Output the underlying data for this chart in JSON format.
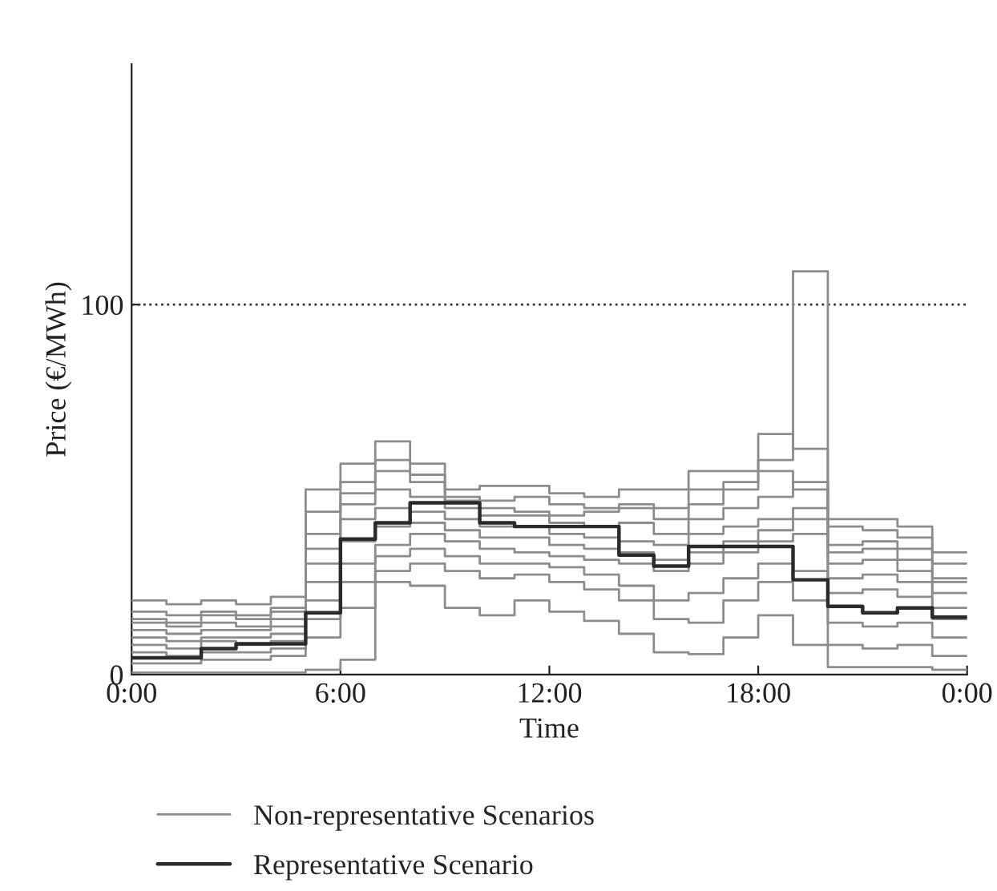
{
  "chart_data": {
    "type": "step",
    "xlabel": "Time",
    "ylabel": "Price (€/MWh)",
    "x": [
      0,
      1,
      2,
      3,
      4,
      5,
      6,
      7,
      8,
      9,
      10,
      11,
      12,
      13,
      14,
      15,
      16,
      17,
      18,
      19,
      20,
      21,
      22,
      23,
      24
    ],
    "xlim": [
      0,
      24
    ],
    "ylim": [
      0,
      165
    ],
    "xticks": [
      {
        "value": 0,
        "label": "0:00"
      },
      {
        "value": 6,
        "label": "6:00"
      },
      {
        "value": 12,
        "label": "12:00"
      },
      {
        "value": 18,
        "label": "18:00"
      },
      {
        "value": 24,
        "label": "0:00"
      }
    ],
    "yticks": [
      0,
      100
    ],
    "ref_lines": [
      {
        "axis": "y",
        "value": 100,
        "color": "#333333",
        "line_style": "dotted"
      }
    ],
    "legend": "bottom",
    "grid": false,
    "series": [
      {
        "name": "Non-representative Scenarios",
        "color": "#8c8c8c",
        "values": [
          20,
          19,
          20,
          19,
          21,
          50,
          57,
          63,
          57,
          50,
          51,
          51,
          49,
          48,
          50,
          50,
          55,
          55,
          65,
          61,
          42,
          42,
          40,
          33,
          33
        ]
      },
      {
        "color": "#8c8c8c",
        "values": [
          15,
          14,
          16,
          15,
          17,
          38,
          49,
          55,
          52,
          47,
          45,
          44,
          43,
          44,
          45,
          42,
          46,
          50,
          58,
          109,
          35,
          36,
          34,
          25,
          25
        ]
      },
      {
        "color": "#8c8c8c",
        "values": [
          0.5,
          0.5,
          0.5,
          0.5,
          0.5,
          1.3,
          4,
          25,
          24,
          18,
          16,
          20,
          17,
          14.5,
          11,
          6,
          5.5,
          10,
          16,
          8,
          2,
          2,
          2,
          1.3,
          1.3
        ]
      },
      {
        "color": "#8c8c8c",
        "values": [
          12,
          11,
          12,
          12,
          13,
          30,
          42,
          45,
          44,
          42,
          40,
          40,
          38,
          37,
          36,
          35,
          38,
          40,
          42,
          45,
          30,
          31,
          28,
          22,
          22
        ]
      },
      {
        "color": "#8c8c8c",
        "values": [
          8,
          7,
          9,
          8,
          9,
          20,
          30,
          35,
          38,
          36,
          34,
          33,
          32,
          31,
          30,
          28,
          30,
          33,
          36,
          38,
          22,
          23,
          21,
          15,
          15
        ]
      },
      {
        "color": "#8c8c8c",
        "values": [
          3,
          3,
          4,
          4,
          5,
          10,
          18,
          28,
          30,
          28,
          26,
          27,
          25,
          23,
          20,
          15,
          14,
          20,
          25,
          20,
          8,
          7,
          8,
          5,
          5
        ]
      },
      {
        "color": "#8c8c8c",
        "values": [
          17,
          16,
          17,
          16,
          18,
          44,
          52,
          58,
          54,
          48,
          47,
          48,
          46,
          45,
          46,
          45,
          50,
          52,
          55,
          50,
          40,
          39,
          37,
          30,
          30
        ]
      },
      {
        "color": "#8c8c8c",
        "values": [
          6,
          5,
          6,
          6,
          7,
          15,
          25,
          32,
          34,
          32,
          30,
          30,
          29,
          27,
          24,
          20,
          22,
          26,
          30,
          28,
          14,
          13,
          14,
          10,
          10
        ]
      },
      {
        "color": "#8c8c8c",
        "values": [
          10,
          9,
          10,
          10,
          11,
          25,
          36,
          40,
          41,
          39,
          37,
          37,
          35,
          34,
          33,
          31,
          33,
          36,
          39,
          42,
          26,
          27,
          25,
          18,
          18
        ]
      },
      {
        "color": "#8c8c8c",
        "values": [
          14,
          13,
          14,
          13,
          15,
          34,
          46,
          50,
          48,
          45,
          43,
          43,
          41,
          40,
          41,
          38,
          42,
          45,
          48,
          52,
          33,
          34,
          31,
          26,
          26
        ]
      },
      {
        "name": "Representative Scenario",
        "color": "#2a2a2a",
        "values": [
          4.5,
          4.5,
          7,
          8.3,
          8.3,
          16.7,
          36.6,
          41,
          46.4,
          46.4,
          41,
          40,
          40,
          40,
          32.3,
          29.3,
          34.6,
          34.6,
          34.6,
          25.6,
          18.4,
          16.7,
          18,
          15.5,
          15.5
        ]
      }
    ]
  }
}
